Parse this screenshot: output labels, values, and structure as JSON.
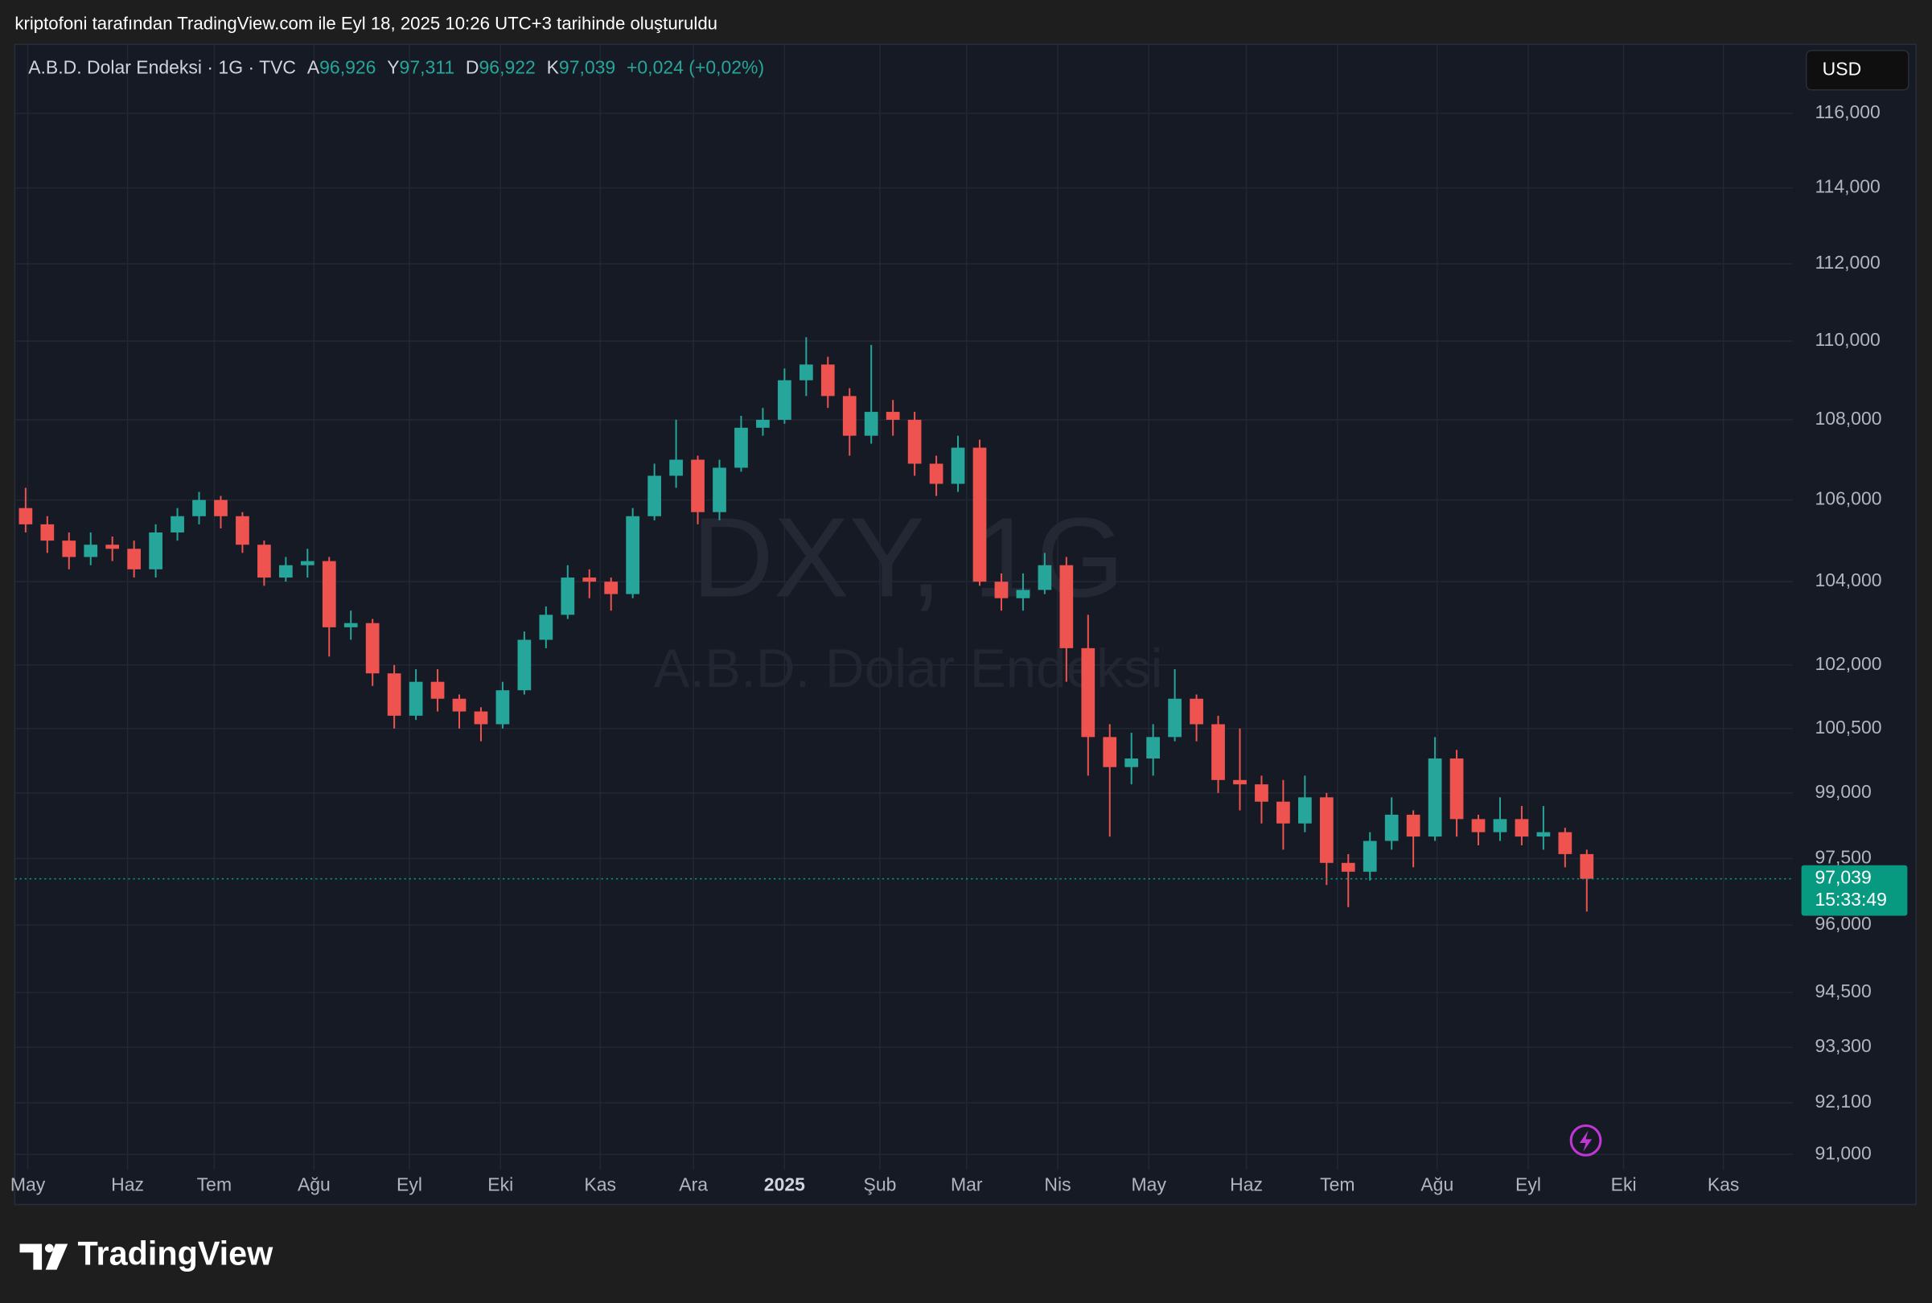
{
  "caption": "kriptofoni tarafından TradingView.com ile Eyl 18, 2025 10:26 UTC+3 tarihinde oluşturuldu",
  "header": {
    "symbol": "A.B.D. Dolar Endeksi · 1G · TVC",
    "ohlc": [
      {
        "key": "A",
        "value": "96,926"
      },
      {
        "key": "Y",
        "value": "97,311"
      },
      {
        "key": "D",
        "value": "96,922"
      },
      {
        "key": "K",
        "value": "97,039"
      }
    ],
    "change": "+0,024 (+0,02%)"
  },
  "currency_button": "USD",
  "watermark": {
    "title": "DXY, 1G",
    "subtitle": "A.B.D. Dolar Endeksi"
  },
  "logo": "TradingView",
  "chart_data": {
    "type": "candlestick",
    "x": [
      0,
      1,
      2,
      3,
      4,
      5,
      6,
      7,
      8,
      9,
      10,
      11,
      12,
      13,
      14,
      15,
      16,
      17,
      18,
      19,
      20,
      21,
      22,
      23,
      24,
      25,
      26,
      27,
      28,
      29,
      30,
      31,
      32,
      33,
      34,
      35,
      36,
      37,
      38,
      39,
      40,
      41,
      42,
      43,
      44,
      45,
      46,
      47,
      48,
      49,
      50,
      51,
      52,
      53,
      54,
      55,
      56,
      57,
      58,
      59,
      60,
      61,
      62,
      63,
      64,
      65,
      66,
      67,
      68,
      69,
      70,
      71,
      72
    ],
    "open": [
      105.8,
      105.4,
      105.0,
      104.6,
      104.9,
      104.8,
      104.3,
      105.2,
      105.6,
      106.0,
      105.6,
      104.9,
      104.1,
      104.4,
      104.5,
      102.9,
      103.0,
      101.8,
      100.8,
      101.6,
      101.2,
      100.9,
      100.6,
      101.4,
      102.6,
      103.2,
      104.1,
      104.0,
      103.7,
      105.6,
      106.6,
      107.0,
      105.7,
      106.8,
      107.8,
      108.0,
      109.0,
      109.4,
      108.6,
      107.6,
      108.2,
      108.0,
      106.9,
      106.4,
      107.3,
      104.0,
      103.6,
      103.8,
      104.4,
      102.4,
      100.3,
      99.6,
      99.8,
      100.3,
      101.2,
      100.6,
      99.3,
      99.2,
      98.8,
      98.3,
      98.9,
      97.4,
      97.2,
      97.9,
      98.5,
      98.0,
      99.8,
      98.4,
      98.1,
      98.4,
      98.0,
      98.1,
      97.6
    ],
    "high": [
      106.3,
      105.6,
      105.2,
      105.2,
      105.1,
      105.0,
      105.4,
      105.8,
      106.2,
      106.1,
      105.7,
      105.0,
      104.6,
      104.8,
      104.6,
      103.3,
      103.1,
      102.0,
      101.9,
      101.9,
      101.3,
      101.0,
      101.6,
      102.8,
      103.4,
      104.4,
      104.3,
      104.1,
      105.8,
      106.9,
      108.0,
      107.1,
      107.0,
      108.1,
      108.3,
      109.3,
      110.1,
      109.6,
      108.8,
      109.9,
      108.5,
      108.2,
      107.1,
      107.6,
      107.5,
      104.2,
      104.2,
      104.7,
      104.6,
      103.2,
      100.6,
      100.4,
      100.6,
      101.9,
      101.3,
      100.8,
      100.5,
      99.4,
      99.3,
      99.4,
      99.0,
      97.6,
      98.1,
      98.9,
      98.6,
      100.3,
      100.0,
      98.5,
      98.9,
      98.7,
      98.7,
      98.2,
      97.7
    ],
    "low": [
      105.2,
      104.7,
      104.3,
      104.4,
      104.5,
      104.1,
      104.1,
      105.0,
      105.4,
      105.3,
      104.7,
      103.9,
      104.0,
      104.1,
      102.2,
      102.6,
      101.5,
      100.5,
      100.7,
      100.9,
      100.5,
      100.2,
      100.5,
      101.3,
      102.4,
      103.1,
      103.6,
      103.3,
      103.6,
      105.5,
      106.3,
      105.4,
      105.5,
      106.7,
      107.6,
      107.9,
      108.6,
      108.3,
      107.1,
      107.4,
      107.6,
      106.6,
      106.1,
      106.2,
      103.9,
      103.3,
      103.3,
      103.7,
      101.6,
      99.4,
      98.0,
      99.2,
      99.4,
      100.2,
      100.2,
      99.0,
      98.6,
      98.3,
      97.7,
      98.1,
      96.9,
      96.4,
      97.0,
      97.7,
      97.3,
      97.9,
      98.0,
      97.8,
      97.9,
      97.8,
      97.7,
      97.3,
      96.3
    ],
    "close": [
      105.4,
      105.0,
      104.6,
      104.9,
      104.8,
      104.3,
      105.2,
      105.6,
      106.0,
      105.6,
      104.9,
      104.1,
      104.4,
      104.5,
      102.9,
      103.0,
      101.8,
      100.8,
      101.6,
      101.2,
      100.9,
      100.6,
      101.4,
      102.6,
      103.2,
      104.1,
      104.0,
      103.7,
      105.6,
      106.6,
      107.0,
      105.7,
      106.8,
      107.8,
      108.0,
      109.0,
      109.4,
      108.6,
      107.6,
      108.2,
      108.0,
      106.9,
      106.4,
      107.3,
      104.0,
      103.6,
      103.8,
      104.4,
      102.4,
      100.3,
      99.6,
      99.8,
      100.3,
      101.2,
      100.6,
      99.3,
      99.2,
      98.8,
      98.3,
      98.9,
      97.4,
      97.2,
      97.9,
      98.5,
      98.0,
      99.8,
      98.4,
      98.1,
      98.4,
      98.0,
      98.1,
      97.6,
      97.039
    ],
    "up_color": "#26a69a",
    "down_color": "#ef5350",
    "xlim": [
      -0.5,
      81.5
    ],
    "xticks": [
      {
        "value": 0.1,
        "label": "May"
      },
      {
        "value": 4.7,
        "label": "Haz"
      },
      {
        "value": 8.7,
        "label": "Tem"
      },
      {
        "value": 13.3,
        "label": "Ağu"
      },
      {
        "value": 17.7,
        "label": "Eyl"
      },
      {
        "value": 21.9,
        "label": "Eki"
      },
      {
        "value": 26.5,
        "label": "Kas"
      },
      {
        "value": 30.8,
        "label": "Ara"
      },
      {
        "value": 35.0,
        "label": "2025"
      },
      {
        "value": 39.4,
        "label": "Şub"
      },
      {
        "value": 43.4,
        "label": "Mar"
      },
      {
        "value": 47.6,
        "label": "Nis"
      },
      {
        "value": 51.8,
        "label": "May"
      },
      {
        "value": 56.3,
        "label": "Haz"
      },
      {
        "value": 60.5,
        "label": "Tem"
      },
      {
        "value": 65.1,
        "label": "Ağu"
      },
      {
        "value": 69.3,
        "label": "Eyl"
      },
      {
        "value": 73.7,
        "label": "Eki"
      },
      {
        "value": 78.3,
        "label": "Kas"
      }
    ],
    "ylim": [
      90.67,
      117.88
    ],
    "log_scale": true,
    "grid": true,
    "yticks": [
      {
        "value": 116,
        "label": "116,000"
      },
      {
        "value": 114,
        "label": "114,000"
      },
      {
        "value": 112,
        "label": "112,000"
      },
      {
        "value": 110,
        "label": "110,000"
      },
      {
        "value": 108,
        "label": "108,000"
      },
      {
        "value": 106,
        "label": "106,000"
      },
      {
        "value": 104,
        "label": "104,000"
      },
      {
        "value": 102,
        "label": "102,000"
      },
      {
        "value": 100.5,
        "label": "100,500"
      },
      {
        "value": 99,
        "label": "99,000"
      },
      {
        "value": 97.5,
        "label": "97,500"
      },
      {
        "value": 96,
        "label": "96,000"
      },
      {
        "value": 94.5,
        "label": "94,500"
      },
      {
        "value": 93.3,
        "label": "93,300"
      },
      {
        "value": 92.1,
        "label": "92,100"
      },
      {
        "value": 91,
        "label": "91,000"
      }
    ],
    "last_price": {
      "value": 97.039,
      "label": "97,039",
      "countdown": "15:33:49",
      "color": "#089981"
    }
  }
}
